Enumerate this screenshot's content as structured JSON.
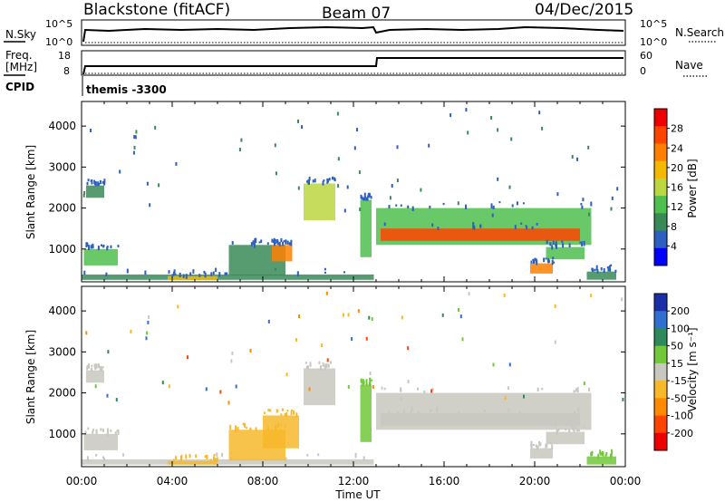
{
  "header": {
    "radar": "Blackstone (fitACF)",
    "beam": "Beam 07",
    "date": "04/Dec/2015"
  },
  "summary": {
    "nsky_label": "N.Sky",
    "nsky_ticks": [
      "10^5",
      "10^0"
    ],
    "nsearch_label": "N.Search",
    "freq_label_1": "Freq.",
    "freq_label_2": "[MHz]",
    "freq_ticks": [
      "18",
      "8"
    ],
    "nave_label": "Nave",
    "nave_ticks": [
      "60",
      "0"
    ],
    "cpid_label": "CPID",
    "cpid_value": "themis -3300"
  },
  "colors": {
    "power_scale": [
      "#0000ff",
      "#2c5fbf",
      "#3a8a58",
      "#4fbf4f",
      "#bcd640",
      "#f5b800",
      "#ff8000",
      "#ff4400",
      "#ee0000"
    ],
    "velocity_scale": [
      "#1a2ea8",
      "#2f6fcf",
      "#2e8a5a",
      "#72c83a",
      "#c8c8c0",
      "#f7b82a",
      "#ff8a00",
      "#ff4400",
      "#ee0000"
    ]
  },
  "chart_data": [
    {
      "type": "heatmap",
      "name": "power",
      "xlabel": "",
      "ylabel": "Slant Range [km]",
      "xlim": [
        "00:00",
        "24:00"
      ],
      "ylim": [
        200,
        4600
      ],
      "x_ticks": [
        "00:00",
        "04:00",
        "08:00",
        "12:00",
        "16:00",
        "20:00",
        "00:00"
      ],
      "y_ticks": [
        1000,
        2000,
        3000,
        4000
      ],
      "colorbar": {
        "label": "Power [dB]",
        "ticks": [
          "28",
          "24",
          "20",
          "16",
          "12",
          "8",
          "4"
        ],
        "range": [
          0,
          30
        ]
      },
      "regions": [
        {
          "hours": [
            0.1,
            1.6
          ],
          "range_km": [
            600,
            1000
          ],
          "dB": 10
        },
        {
          "hours": [
            0.2,
            1.0
          ],
          "range_km": [
            2250,
            2550
          ],
          "dB": 8
        },
        {
          "hours": [
            0.0,
            12.9
          ],
          "range_km": [
            250,
            380
          ],
          "dB": 9
        },
        {
          "hours": [
            3.8,
            6.0
          ],
          "range_km": [
            250,
            340
          ],
          "dB": 18
        },
        {
          "hours": [
            6.5,
            9.0
          ],
          "range_km": [
            350,
            1100
          ],
          "dB": 9
        },
        {
          "hours": [
            8.4,
            9.3
          ],
          "range_km": [
            700,
            1100
          ],
          "dB": 22
        },
        {
          "hours": [
            9.8,
            11.2
          ],
          "range_km": [
            1700,
            2600
          ],
          "dB": 14
        },
        {
          "hours": [
            12.3,
            12.8
          ],
          "range_km": [
            800,
            2200
          ],
          "dB": 12
        },
        {
          "hours": [
            13.0,
            22.5
          ],
          "range_km": [
            1100,
            2000
          ],
          "dB": 13
        },
        {
          "hours": [
            13.2,
            22.0
          ],
          "range_km": [
            1200,
            1500
          ],
          "dB": 24
        },
        {
          "hours": [
            20.5,
            22.2
          ],
          "range_km": [
            750,
            1050
          ],
          "dB": 12
        },
        {
          "hours": [
            19.8,
            20.8
          ],
          "range_km": [
            400,
            650
          ],
          "dB": 20
        },
        {
          "hours": [
            22.3,
            23.6
          ],
          "range_km": [
            250,
            450
          ],
          "dB": 8
        }
      ]
    },
    {
      "type": "heatmap",
      "name": "velocity",
      "xlabel": "Time UT",
      "ylabel": "Slant Range [km]",
      "xlim": [
        "00:00",
        "24:00"
      ],
      "ylim": [
        200,
        4600
      ],
      "x_ticks": [
        "00:00",
        "04:00",
        "08:00",
        "12:00",
        "16:00",
        "20:00",
        "00:00"
      ],
      "y_ticks": [
        1000,
        2000,
        3000,
        4000
      ],
      "colorbar": {
        "label": "Velocity [m s⁻¹]",
        "ticks": [
          "200",
          "100",
          "50",
          "15",
          "-15",
          "-50",
          "-100",
          "-200"
        ],
        "range": [
          -250,
          250
        ]
      },
      "regions": [
        {
          "hours": [
            0.1,
            1.6
          ],
          "range_km": [
            600,
            1000
          ],
          "v": 0
        },
        {
          "hours": [
            0.2,
            1.0
          ],
          "range_km": [
            2250,
            2550
          ],
          "v": 0
        },
        {
          "hours": [
            0.0,
            12.9
          ],
          "range_km": [
            250,
            380
          ],
          "v": -20
        },
        {
          "hours": [
            3.8,
            6.0
          ],
          "range_km": [
            250,
            340
          ],
          "v": -40
        },
        {
          "hours": [
            6.5,
            9.0
          ],
          "range_km": [
            350,
            1100
          ],
          "v": -30
        },
        {
          "hours": [
            8.0,
            9.6
          ],
          "range_km": [
            650,
            1450
          ],
          "v": -45
        },
        {
          "hours": [
            9.8,
            11.2
          ],
          "range_km": [
            1700,
            2600
          ],
          "v": 0
        },
        {
          "hours": [
            12.3,
            12.8
          ],
          "range_km": [
            800,
            2200
          ],
          "v": 30
        },
        {
          "hours": [
            13.0,
            22.5
          ],
          "range_km": [
            1100,
            2000
          ],
          "v": 0
        },
        {
          "hours": [
            13.2,
            22.0
          ],
          "range_km": [
            1200,
            1500
          ],
          "v": 0
        },
        {
          "hours": [
            20.5,
            22.2
          ],
          "range_km": [
            750,
            1050
          ],
          "v": 0
        },
        {
          "hours": [
            19.8,
            20.8
          ],
          "range_km": [
            400,
            650
          ],
          "v": 0
        },
        {
          "hours": [
            22.3,
            23.6
          ],
          "range_km": [
            250,
            450
          ],
          "v": 30
        }
      ]
    }
  ]
}
